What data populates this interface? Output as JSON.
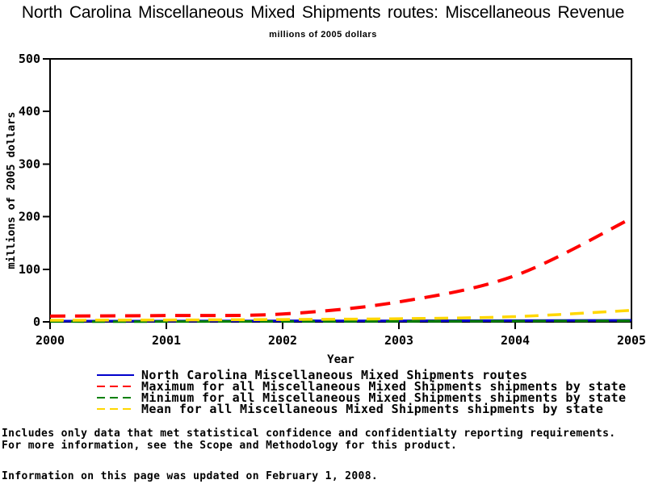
{
  "page": {
    "title": "North Carolina Miscellaneous Mixed Shipments routes: Miscellaneous Revenue",
    "subtitle": "millions of 2005 dollars"
  },
  "chart_data": {
    "type": "line",
    "title": "North Carolina Miscellaneous Mixed Shipments routes: Miscellaneous Revenue",
    "subtitle": "millions of 2005 dollars",
    "xlabel": "Year",
    "ylabel": "millions of 2005 dollars",
    "xlim": [
      2000,
      2005
    ],
    "ylim": [
      0,
      500
    ],
    "xticks": [
      2000,
      2001,
      2002,
      2003,
      2004,
      2005
    ],
    "yticks": [
      0,
      100,
      200,
      300,
      400,
      500
    ],
    "grid": false,
    "legend_position": "bottom",
    "frame_color": "#000000",
    "x": [
      2000,
      2001,
      2002,
      2003,
      2004,
      2005
    ],
    "series": [
      {
        "name": "North Carolina Miscellaneous Mixed Shipments routes",
        "color": "#0000CC",
        "style": "solid",
        "values": [
          1.5,
          1.5,
          2,
          2,
          2.5,
          3
        ]
      },
      {
        "name": "Maximum for all Miscellaneous Mixed Shipments shipments by state",
        "color": "#FF0000",
        "style": "dashed",
        "values": [
          11,
          12,
          15,
          38,
          88,
          197
        ]
      },
      {
        "name": "Minimum for all Miscellaneous Mixed Shipments shipments by state",
        "color": "#008000",
        "style": "dashed",
        "values": [
          0.5,
          0.5,
          1,
          1,
          1.5,
          2
        ]
      },
      {
        "name": "Mean for all Miscellaneous Mixed Shipments shipments by state",
        "color": "#FFD700",
        "style": "dashed",
        "values": [
          3,
          3.5,
          4.5,
          6,
          10,
          22
        ]
      }
    ]
  },
  "footnotes": {
    "line1": "Includes only data that met statistical confidence and confidentialty reporting requirements.",
    "line2": "For more information, see the Scope and Methodology for this product.",
    "updated": "Information on this page was updated on February 1, 2008."
  }
}
